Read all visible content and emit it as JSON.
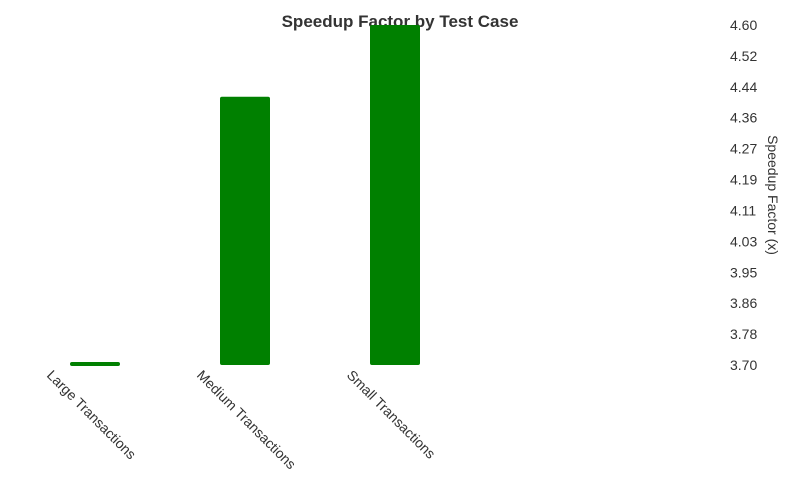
{
  "chart_data": {
    "type": "bar",
    "title": "Speedup Factor by Test Case",
    "xlabel": "",
    "ylabel": "Speedup Factor (x)",
    "categories": [
      "Large Transactions",
      "Medium Transactions",
      "Small Transactions"
    ],
    "values": [
      3.7,
      4.41,
      4.6
    ],
    "ylim": [
      3.7,
      4.6
    ],
    "y_ticks": [
      "3.70",
      "3.78",
      "3.86",
      "3.95",
      "4.03",
      "4.11",
      "4.19",
      "4.27",
      "4.36",
      "4.44",
      "4.52",
      "4.60"
    ],
    "y_axis_position": "right",
    "grid": false,
    "legend": "none",
    "bar_color": "#008000"
  }
}
